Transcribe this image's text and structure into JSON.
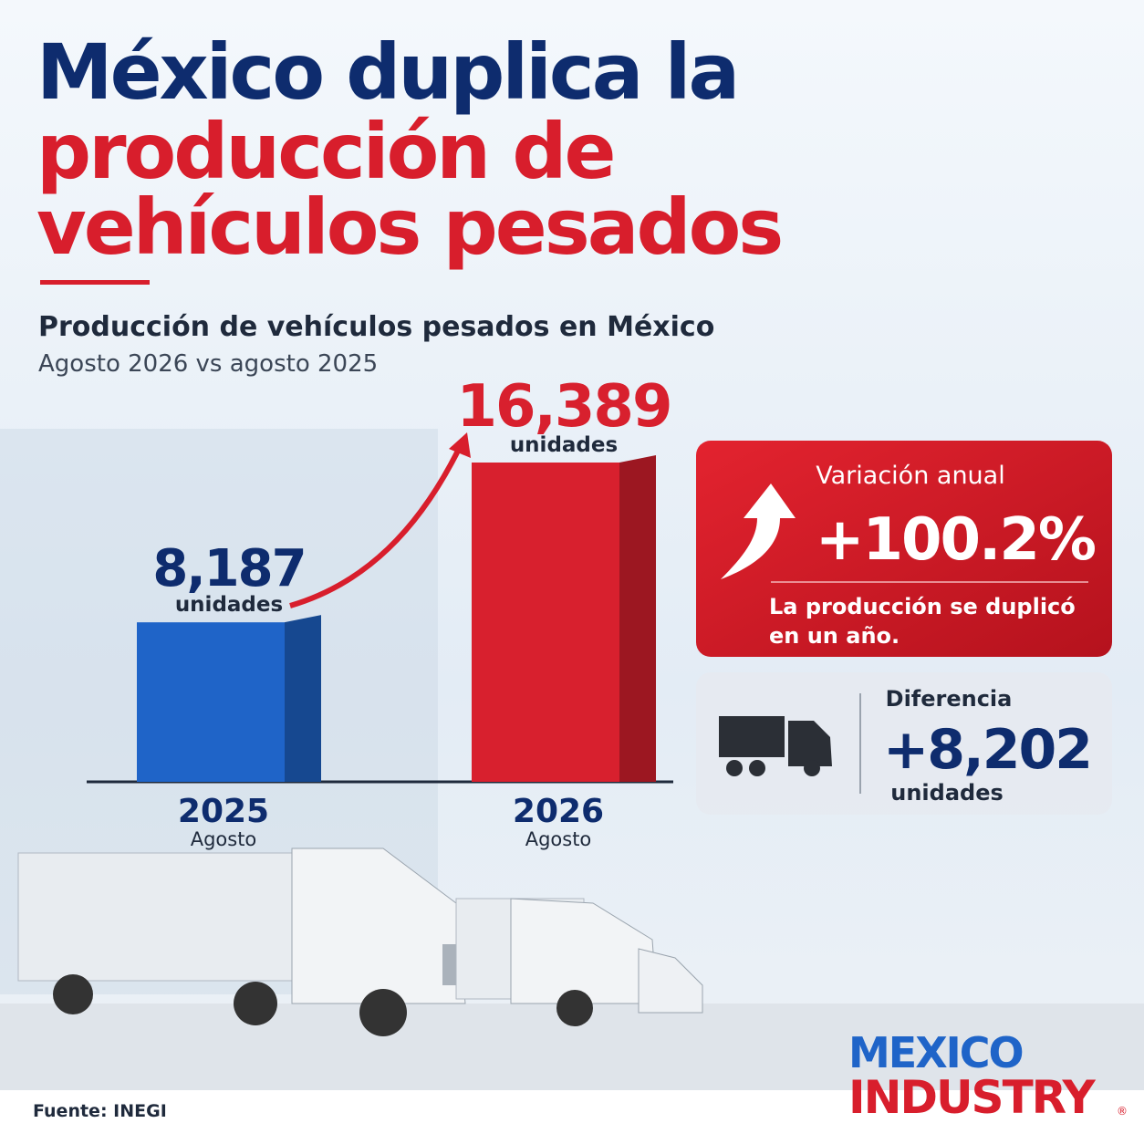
{
  "headline": {
    "lines": [
      "México duplica la",
      "producción de",
      "vehículos pesados"
    ]
  },
  "chart_data": {
    "type": "bar",
    "title": "Producción de vehículos pesados en México",
    "subtitle": "Agosto 2026 vs agosto 2025",
    "categories": [
      "2025",
      "2026"
    ],
    "category_notes": [
      "Agosto",
      "Agosto"
    ],
    "values": [
      8187,
      16389
    ],
    "value_labels": [
      "8,187",
      "16,389"
    ],
    "value_unit": "unidades",
    "colors": [
      "#1f64c8",
      "#d8202e"
    ]
  },
  "callouts": {
    "variation": {
      "label": "Variación anual",
      "value": "+100.2%",
      "note_lines": [
        "La producción se duplicó",
        "en un año."
      ]
    },
    "difference": {
      "label": "Diferencia",
      "value": "+8,202",
      "unit": "unidades"
    }
  },
  "footer": {
    "source": "Fuente: INEGI",
    "logo": [
      "MEXICO",
      "INDUSTRY"
    ],
    "mark": "®"
  }
}
